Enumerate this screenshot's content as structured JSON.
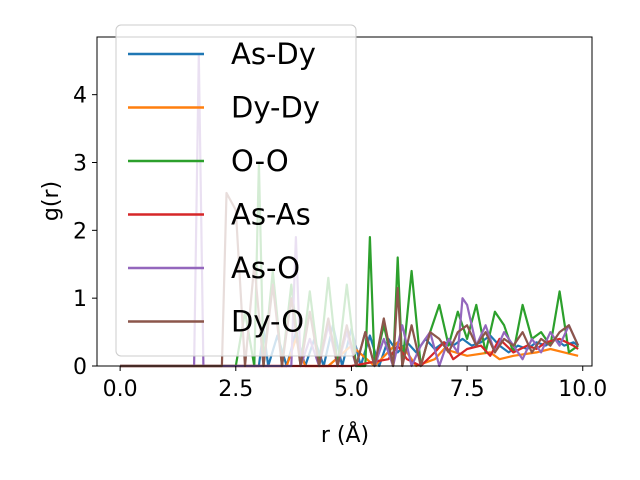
{
  "chart_data": {
    "type": "line",
    "xlabel": "r (Å)",
    "ylabel": "g(r)",
    "xlim": [
      -0.5,
      10.2
    ],
    "ylim": [
      0,
      4.85
    ],
    "xticks": [
      "0.0",
      "2.5",
      "5.0",
      "7.5",
      "10.0"
    ],
    "xtick_values": [
      0,
      2.5,
      5,
      7.5,
      10
    ],
    "yticks": [
      "0",
      "1",
      "2",
      "3",
      "4"
    ],
    "ytick_values": [
      0,
      1,
      2,
      3,
      4
    ],
    "legend_position": "upper-left",
    "series": [
      {
        "name": "As-Dy",
        "color": "#1f77b4",
        "x": [
          0,
          0.5,
          1.0,
          1.5,
          2.0,
          2.5,
          2.8,
          3.0,
          3.1,
          3.2,
          3.4,
          3.6,
          3.8,
          4.0,
          4.2,
          4.4,
          4.6,
          4.8,
          5.0,
          5.2,
          5.4,
          5.6,
          5.8,
          6.0,
          6.2,
          6.4,
          6.6,
          6.8,
          7.0,
          7.2,
          7.4,
          7.6,
          7.8,
          8.0,
          8.2,
          8.4,
          8.6,
          8.8,
          9.0,
          9.2,
          9.4,
          9.6,
          9.8,
          9.9
        ],
        "y": [
          0,
          0,
          0,
          0,
          0,
          0,
          0,
          0,
          0.55,
          0,
          0.45,
          0,
          0.5,
          0,
          0.4,
          0,
          0.6,
          0,
          0.55,
          0,
          0.45,
          0,
          0.4,
          0.2,
          0.35,
          0.2,
          0.4,
          0.25,
          0.35,
          0.3,
          0.4,
          0.3,
          0.35,
          0.45,
          0.3,
          0.2,
          0.3,
          0.25,
          0.35,
          0.3,
          0.4,
          0.3,
          0.35,
          0.3
        ]
      },
      {
        "name": "Dy-Dy",
        "color": "#ff7f0e",
        "x": [
          0,
          1.0,
          2.0,
          3.0,
          3.6,
          3.8,
          4.0,
          4.5,
          5.0,
          5.5,
          6.0,
          6.2,
          6.4,
          6.8,
          7.0,
          7.5,
          8.0,
          8.2,
          8.5,
          9.0,
          9.3,
          9.6,
          9.9
        ],
        "y": [
          0,
          0,
          0,
          0,
          0,
          0.4,
          0,
          0,
          0.3,
          0,
          0.35,
          0.2,
          0,
          0.1,
          0.25,
          0.15,
          0.2,
          0.1,
          0.15,
          0.2,
          0.25,
          0.2,
          0.15
        ]
      },
      {
        "name": "O-O",
        "color": "#2ca02c",
        "x": [
          0,
          0.5,
          1.0,
          1.5,
          2.0,
          2.5,
          2.7,
          2.9,
          3.0,
          3.1,
          3.3,
          3.5,
          3.7,
          3.9,
          4.1,
          4.3,
          4.5,
          4.7,
          4.9,
          5.1,
          5.3,
          5.4,
          5.5,
          5.7,
          5.9,
          6.0,
          6.1,
          6.3,
          6.5,
          6.7,
          6.9,
          7.1,
          7.3,
          7.5,
          7.7,
          7.9,
          8.1,
          8.3,
          8.5,
          8.7,
          8.9,
          9.1,
          9.3,
          9.5,
          9.7,
          9.9
        ],
        "y": [
          0,
          0,
          0,
          0,
          0,
          0,
          0.8,
          0,
          3.0,
          0,
          1.4,
          0,
          1.2,
          0,
          1.1,
          0,
          1.3,
          0,
          1.2,
          0,
          0,
          1.9,
          0,
          0.6,
          0,
          1.6,
          0,
          1.4,
          0,
          0.5,
          0.9,
          0.3,
          0.8,
          0.4,
          0.9,
          0.2,
          0.8,
          0.6,
          0.2,
          0.9,
          0.4,
          0.5,
          0.3,
          1.1,
          0.2,
          0.3
        ]
      },
      {
        "name": "As-As",
        "color": "#d62728",
        "x": [
          0,
          1.0,
          2.0,
          3.0,
          4.0,
          5.0,
          5.8,
          6.0,
          6.2,
          6.5,
          6.8,
          7.0,
          7.2,
          7.5,
          7.8,
          8.0,
          8.2,
          8.5,
          8.8,
          9.0,
          9.2,
          9.5,
          9.8,
          9.9
        ],
        "y": [
          0,
          0,
          0,
          0,
          0,
          0,
          0.1,
          0.3,
          0.1,
          0,
          0.2,
          0.35,
          0.1,
          0.25,
          0.3,
          0.15,
          0.4,
          0.2,
          0.3,
          0.25,
          0.35,
          0.4,
          0.3,
          0.25
        ]
      },
      {
        "name": "As-O",
        "color": "#9467bd",
        "x": [
          0,
          0.5,
          1.0,
          1.5,
          1.6,
          1.7,
          1.8,
          2.0,
          2.5,
          3.0,
          3.5,
          3.7,
          3.8,
          3.9,
          4.1,
          4.3,
          4.5,
          4.7,
          4.9,
          5.1,
          5.3,
          5.5,
          5.7,
          5.9,
          6.1,
          6.3,
          6.5,
          6.7,
          6.9,
          7.1,
          7.3,
          7.4,
          7.5,
          7.7,
          7.9,
          8.1,
          8.3,
          8.5,
          8.7,
          8.9,
          9.1,
          9.3,
          9.5,
          9.7,
          9.9
        ],
        "y": [
          0,
          0,
          0,
          0,
          0,
          4.6,
          0,
          0,
          0,
          0,
          0,
          0,
          1.9,
          0,
          0.4,
          0,
          0.6,
          0,
          0.5,
          0,
          0.5,
          0,
          0.4,
          0,
          0.6,
          0,
          0.3,
          0.5,
          0,
          0.4,
          0.2,
          1.0,
          0.9,
          0.3,
          0.6,
          0.2,
          0.5,
          0.3,
          0.1,
          0.4,
          0.2,
          0.5,
          0.3,
          0.6,
          0.3
        ]
      },
      {
        "name": "Dy-O",
        "color": "#8c564b",
        "x": [
          0,
          0.5,
          1.0,
          1.5,
          2.0,
          2.2,
          2.3,
          2.5,
          2.7,
          2.9,
          3.1,
          3.3,
          3.5,
          3.7,
          3.9,
          4.1,
          4.3,
          4.5,
          4.7,
          4.9,
          5.1,
          5.3,
          5.5,
          5.7,
          5.9,
          6.0,
          6.1,
          6.3,
          6.5,
          6.7,
          6.9,
          7.1,
          7.3,
          7.5,
          7.7,
          7.9,
          8.1,
          8.3,
          8.5,
          8.7,
          8.9,
          9.1,
          9.3,
          9.5,
          9.7,
          9.9
        ],
        "y": [
          0,
          0,
          0,
          0,
          0,
          0,
          2.55,
          2.3,
          0,
          1.5,
          0,
          1.2,
          0,
          1.0,
          0,
          0.8,
          0,
          0.7,
          0,
          0.6,
          0,
          0.5,
          0,
          0.7,
          0,
          1.15,
          0,
          0.6,
          0,
          0.5,
          0.4,
          0.2,
          0.5,
          0.6,
          0.3,
          0.5,
          0.2,
          0.4,
          0.3,
          0.5,
          0.2,
          0.4,
          0.3,
          0.5,
          0.6,
          0.3
        ]
      }
    ]
  }
}
